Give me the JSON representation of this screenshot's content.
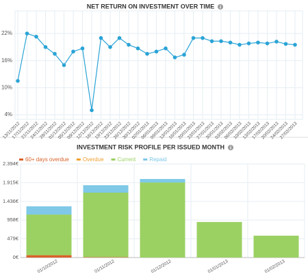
{
  "chart_data": [
    {
      "type": "line",
      "title": "NET RETURN ON INVESTMENT OVER TIME",
      "color": "#2aa3d6",
      "categories": [
        "13/11/2012",
        "17/11/2012",
        "21/11/2012",
        "24/11/2012",
        "28/11/2012",
        "01/12/2012",
        "05/12/2012",
        "09/12/2012",
        "12/12/2012",
        "16/12/2012",
        "19/12/2012",
        "23/12/2012",
        "26/12/2012",
        "30/12/2012",
        "02/01/2013",
        "06/01/2013",
        "09/01/2013",
        "13/01/2013",
        "16/01/2013",
        "20/01/2013",
        "23/01/2013",
        "27/01/2013",
        "30/01/2013",
        "03/02/2013",
        "06/02/2013",
        "10/02/2013",
        "13/02/2013",
        "17/02/2013",
        "20/02/2013",
        "24/02/2013",
        "27/02/2013"
      ],
      "values": [
        11.5,
        22,
        21.3,
        19,
        17.5,
        15,
        18,
        18.7,
        5,
        21,
        19,
        21,
        19.5,
        18.7,
        17.5,
        18,
        18.7,
        16.7,
        17.3,
        21,
        21,
        20.3,
        20.3,
        20,
        19.5,
        19.8,
        20,
        19.8,
        20.2,
        19.7,
        19.5
      ],
      "ylim": [
        3,
        27
      ],
      "yticks": [
        {
          "value": 4,
          "label": "4%"
        },
        {
          "value": 10,
          "label": "10%"
        },
        {
          "value": 16,
          "label": "16%"
        },
        {
          "value": 22,
          "label": "22%"
        }
      ],
      "grid": true
    },
    {
      "type": "stacked-bar",
      "title": "INVESTMENT RISK PROFILE PER ISSUED MONTH",
      "categories": [
        "01/10/2012",
        "01/11/2012",
        "01/12/2012",
        "01/01/2013",
        "01/02/2013"
      ],
      "series": [
        {
          "name": "60+ days overdue",
          "color": "#d9622b",
          "values": [
            60,
            10,
            0,
            0,
            0
          ]
        },
        {
          "name": "Overdue",
          "color": "#f0a030",
          "values": [
            0,
            0,
            0,
            0,
            0
          ]
        },
        {
          "name": "Current",
          "color": "#9bd163",
          "values": [
            1040,
            1650,
            1920,
            910,
            560
          ]
        },
        {
          "name": "Repaid",
          "color": "#7fc8e8",
          "values": [
            210,
            190,
            90,
            0,
            0
          ]
        }
      ],
      "ylim": [
        0,
        2394
      ],
      "yticks": [
        {
          "value": 0,
          "label": "0€"
        },
        {
          "value": 479,
          "label": "479€"
        },
        {
          "value": 958,
          "label": "958€"
        },
        {
          "value": 1436,
          "label": "1.436€"
        },
        {
          "value": 1915,
          "label": "1.915€"
        },
        {
          "value": 2394,
          "label": "2.394€"
        }
      ],
      "grid": true
    }
  ]
}
